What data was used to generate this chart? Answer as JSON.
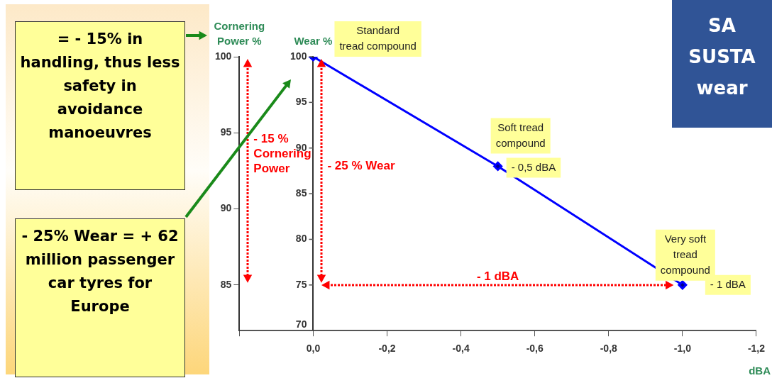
{
  "chart_data": {
    "type": "line",
    "title": "SA SUSTA wear",
    "x": [
      0,
      -0.5,
      -1
    ],
    "series": [
      {
        "color": "#0000ff",
        "values": [
          100,
          88,
          75
        ]
      }
    ],
    "xlim": [
      0.2,
      -1.2
    ],
    "xticks": [
      {
        "value": 0.2,
        "label": null
      },
      {
        "value": 0,
        "label": "0,0"
      },
      {
        "value": -0.2,
        "label": "-0,2"
      },
      {
        "value": -0.4,
        "label": "-0,4"
      },
      {
        "value": -0.6,
        "label": "-0,6"
      },
      {
        "value": -0.8,
        "label": "-0,8"
      },
      {
        "value": -1,
        "label": "-1,0"
      },
      {
        "value": -1.2,
        "label": "-1,2"
      }
    ],
    "ylim": [
      70,
      100
    ],
    "yticks": [
      70,
      75,
      80,
      85,
      90,
      95,
      100
    ],
    "y2lim": [
      82,
      100
    ],
    "y2ticks": [
      85,
      90,
      95,
      100
    ],
    "xlabel": "dBA",
    "ylabel": "Wear %",
    "y2label": "Cornering Power %",
    "marker": "diamond",
    "line_style": "solid",
    "grid": false,
    "legend": false,
    "annotations": [
      "= - 15% in handling, thus less safety in avoidance manoeuvres",
      "- 25% Wear = + 62 million passenger car tyres for Europe",
      "- 15 %\nCornering\nPower",
      "- 25 % Wear",
      "- 1 dBA",
      {
        "text": "Standard\ntread compound",
        "x": 0,
        "y": 100
      },
      {
        "text": "Soft tread\ncompound",
        "x": -0.5,
        "y": 88
      },
      {
        "text": "- 0,5 dBA",
        "x": -0.5,
        "y": 88
      },
      {
        "text": "Very soft\ntread\ncompound",
        "x": -1,
        "y": 75
      },
      {
        "text": "- 1 dBA",
        "x": -1,
        "y": 75
      }
    ]
  }
}
